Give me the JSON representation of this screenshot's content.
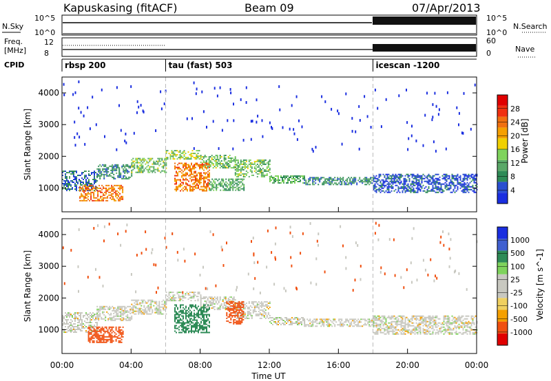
{
  "header": {
    "station": "Kapuskasing (fitACF)",
    "beam": "Beam 09",
    "date": "07/Apr/2013"
  },
  "noise_panel": {
    "left_label": "N.Sky",
    "left_ticks": [
      "10^5",
      "10^0"
    ],
    "right_ticks": [
      "10^5",
      "10^0"
    ],
    "right_label": "N.Search"
  },
  "freq_panel": {
    "left_label_1": "Freq.",
    "left_label_2": "[MHz]",
    "left_ticks": [
      "12",
      "8"
    ],
    "right_ticks": [
      "60",
      "0"
    ],
    "right_label": "Nave"
  },
  "cpid_panel": {
    "label": "CPID",
    "segments": [
      {
        "start_hour": 0,
        "text": "rbsp 200"
      },
      {
        "start_hour": 6,
        "text": "tau (fast) 503"
      },
      {
        "start_hour": 18,
        "text": "icescan -1200"
      }
    ]
  },
  "power_colorbar": {
    "title": "Power [dB]",
    "colors": [
      "#1a2ee0",
      "#2a4fd0",
      "#2e8b57",
      "#5aa868",
      "#7fd35c",
      "#f0d000",
      "#f5a000",
      "#f07010",
      "#f03010",
      "#e00000"
    ],
    "labels": [
      "4",
      "8",
      "12",
      "16",
      "20",
      "24",
      "28"
    ]
  },
  "velocity_colorbar": {
    "title": "Velocity [m s^-1]",
    "colors": [
      "#e00000",
      "#f05010",
      "#f5a000",
      "#f0d060",
      "#c8c8c0",
      "#c8c8c0",
      "#7fd35c",
      "#2e8b57",
      "#4060d0",
      "#1a2ee0"
    ],
    "labels": [
      "-1000",
      "-500",
      "-100",
      "-25",
      "25",
      "100",
      "500",
      "1000"
    ]
  },
  "chart_data": [
    {
      "type": "heatmap",
      "panel": "power",
      "xlabel": "",
      "ylabel": "Slant Range [km]",
      "xlim": [
        0,
        24
      ],
      "ylim": [
        250,
        4500
      ],
      "yticks": [
        1000,
        2000,
        3000,
        4000
      ],
      "backscatter_bands": [
        {
          "x_start": 0,
          "x_end": 2,
          "y_low": 900,
          "y_high": 1550,
          "power_db": 8
        },
        {
          "x_start": 2,
          "x_end": 4,
          "y_low": 1300,
          "y_high": 1750,
          "power_db": 10
        },
        {
          "x_start": 4,
          "x_end": 6,
          "y_low": 1500,
          "y_high": 1950,
          "power_db": 14
        },
        {
          "x_start": 6,
          "x_end": 8,
          "y_low": 1900,
          "y_high": 2200,
          "power_db": 16
        },
        {
          "x_start": 8,
          "x_end": 10,
          "y_low": 1650,
          "y_high": 2050,
          "power_db": 14
        },
        {
          "x_start": 10,
          "x_end": 12,
          "y_low": 1350,
          "y_high": 1900,
          "power_db": 14
        },
        {
          "x_start": 12,
          "x_end": 14,
          "y_low": 1150,
          "y_high": 1400,
          "power_db": 12
        },
        {
          "x_start": 14,
          "x_end": 18,
          "y_low": 1100,
          "y_high": 1350,
          "power_db": 10
        },
        {
          "x_start": 18,
          "x_end": 24,
          "y_low": 850,
          "y_high": 1450,
          "power_db": 6
        },
        {
          "x_start": 1,
          "x_end": 3.5,
          "y_low": 600,
          "y_high": 1100,
          "power_db": 24
        },
        {
          "x_start": 6.5,
          "x_end": 8.5,
          "y_low": 900,
          "y_high": 1800,
          "power_db": 24
        },
        {
          "x_start": 8.5,
          "x_end": 10.5,
          "y_low": 950,
          "y_high": 1300,
          "power_db": 12
        }
      ]
    },
    {
      "type": "heatmap",
      "panel": "velocity",
      "xlabel": "Time UT",
      "ylabel": "Slant Range [km]",
      "xlim": [
        0,
        24
      ],
      "ylim": [
        250,
        4500
      ],
      "xticks": [
        "00:00",
        "04:00",
        "08:00",
        "12:00",
        "16:00",
        "20:00",
        "00:00"
      ],
      "yticks": [
        1000,
        2000,
        3000,
        4000
      ],
      "backscatter_bands": [
        {
          "x_start": 0,
          "x_end": 2,
          "y_low": 900,
          "y_high": 1550,
          "velocity": 0
        },
        {
          "x_start": 2,
          "x_end": 4,
          "y_low": 1300,
          "y_high": 1750,
          "velocity": 0
        },
        {
          "x_start": 4,
          "x_end": 6,
          "y_low": 1500,
          "y_high": 1950,
          "velocity": 0
        },
        {
          "x_start": 6,
          "x_end": 8,
          "y_low": 1900,
          "y_high": 2200,
          "velocity": 0
        },
        {
          "x_start": 8,
          "x_end": 10,
          "y_low": 1650,
          "y_high": 2050,
          "velocity": 0
        },
        {
          "x_start": 10,
          "x_end": 12,
          "y_low": 1350,
          "y_high": 1900,
          "velocity": 0
        },
        {
          "x_start": 12,
          "x_end": 14,
          "y_low": 1150,
          "y_high": 1400,
          "velocity": 0
        },
        {
          "x_start": 14,
          "x_end": 18,
          "y_low": 1100,
          "y_high": 1350,
          "velocity": 0
        },
        {
          "x_start": 18,
          "x_end": 24,
          "y_low": 850,
          "y_high": 1450,
          "velocity": 0
        },
        {
          "x_start": 1.5,
          "x_end": 3.5,
          "y_low": 600,
          "y_high": 1100,
          "velocity": -150
        },
        {
          "x_start": 6.5,
          "x_end": 8.5,
          "y_low": 900,
          "y_high": 1800,
          "velocity": 150
        },
        {
          "x_start": 9.5,
          "x_end": 10.5,
          "y_low": 1200,
          "y_high": 1900,
          "velocity": -150
        }
      ]
    }
  ]
}
